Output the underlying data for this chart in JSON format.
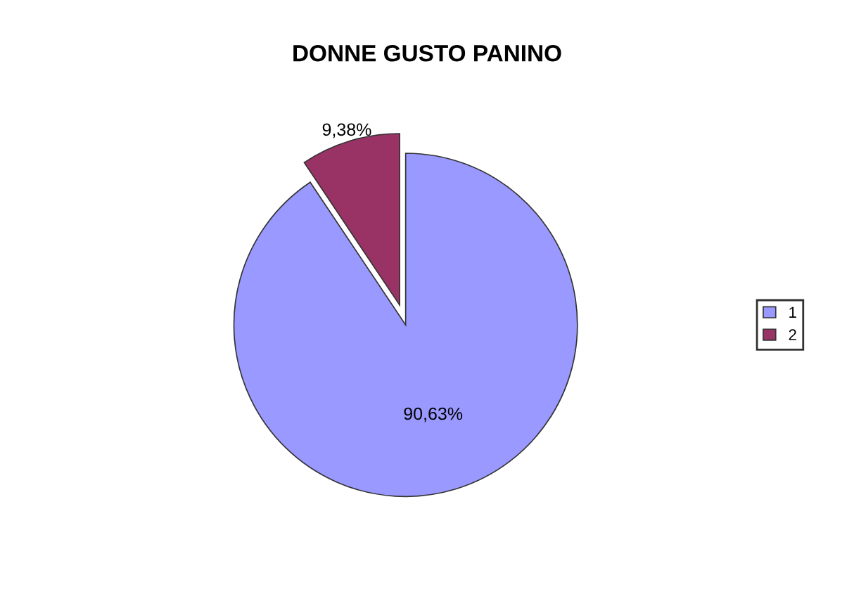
{
  "chart_data": {
    "type": "pie",
    "title": "DONNE GUSTO PANINO",
    "categories": [
      "1",
      "2"
    ],
    "values": [
      90.63,
      9.38
    ],
    "colors": [
      "#9999ff",
      "#993366"
    ],
    "value_labels": [
      "90,63%",
      "9,38%"
    ],
    "legend": "right"
  }
}
